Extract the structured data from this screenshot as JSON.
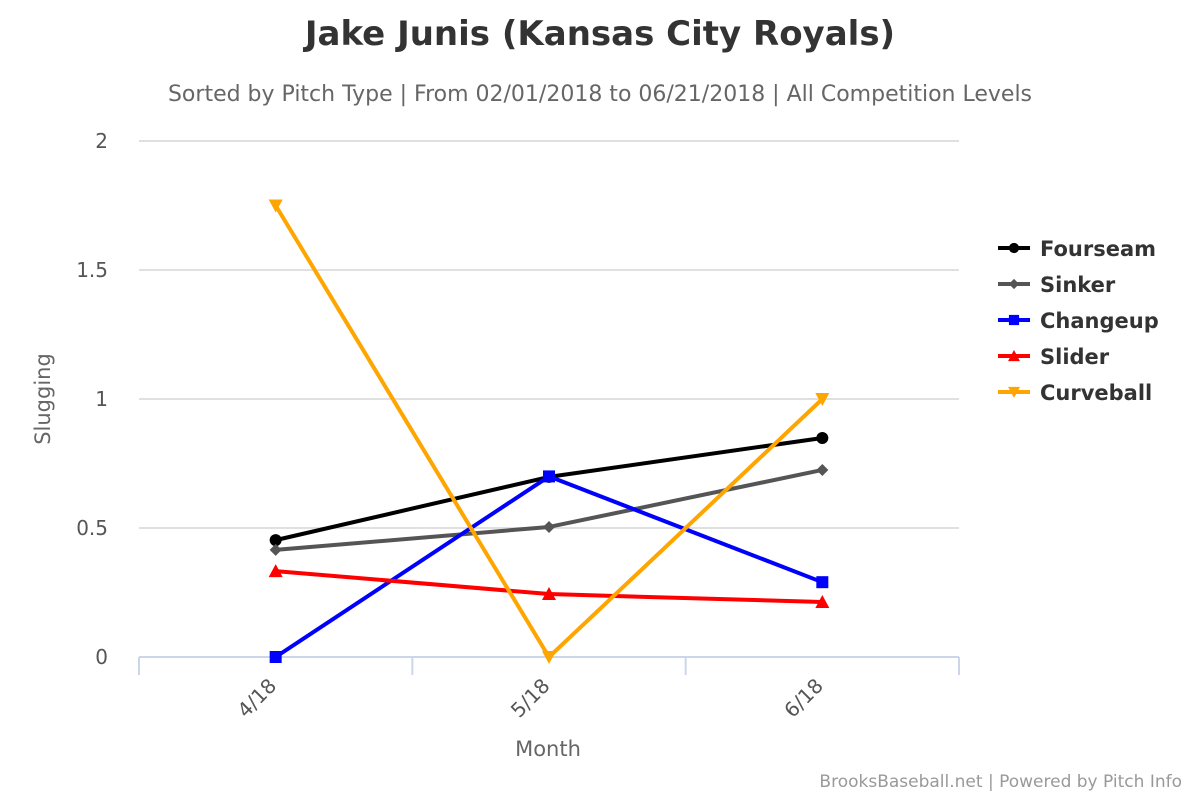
{
  "header": {
    "title": "Jake Junis (Kansas City Royals)",
    "subtitle": "Sorted by Pitch Type | From 02/01/2018 to 06/21/2018 | All Competition Levels"
  },
  "credits": "BrooksBaseball.net | Powered by Pitch Info",
  "chart_data": {
    "type": "line",
    "title": "Jake Junis (Kansas City Royals)",
    "subtitle": "Sorted by Pitch Type | From 02/01/2018 to 06/21/2018 | All Competition Levels",
    "xlabel": "Month",
    "ylabel": "Slugging",
    "categories": [
      "4/18",
      "5/18",
      "6/18"
    ],
    "ylim": [
      0,
      2
    ],
    "yticks": [
      "0",
      "0.5",
      "1",
      "1.5",
      "2"
    ],
    "grid": true,
    "legend_position": "right",
    "series": [
      {
        "name": "Fourseam",
        "color": "#000000",
        "marker": "circle",
        "values": [
          0.453,
          0.698,
          0.849
        ]
      },
      {
        "name": "Sinker",
        "color": "#555555",
        "marker": "diamond",
        "values": [
          0.415,
          0.504,
          0.725
        ]
      },
      {
        "name": "Changeup",
        "color": "#0000ff",
        "marker": "square",
        "values": [
          0.0,
          0.7,
          0.29
        ]
      },
      {
        "name": "Slider",
        "color": "#ff0000",
        "marker": "triangle",
        "values": [
          0.333,
          0.244,
          0.213
        ]
      },
      {
        "name": "Curveball",
        "color": "#ffa500",
        "marker": "triangle-down",
        "values": [
          1.75,
          0.0,
          1.0
        ]
      }
    ]
  }
}
